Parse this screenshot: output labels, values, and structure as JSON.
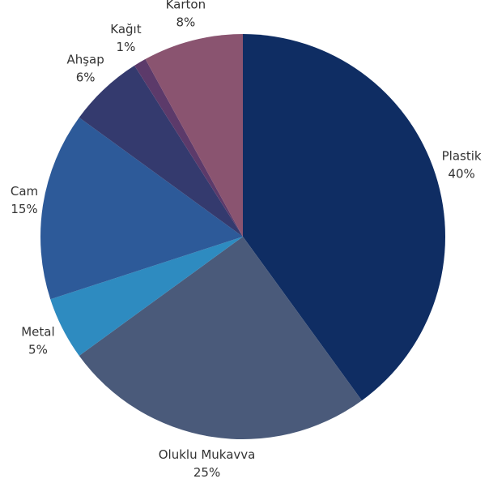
{
  "chart_data": {
    "type": "pie",
    "categories": [
      "Plastik",
      "Oluklu Mukavva",
      "Metal",
      "Cam",
      "Ahşap",
      "Kağıt",
      "Karton"
    ],
    "values": [
      40,
      25,
      5,
      15,
      6,
      1,
      8
    ],
    "value_labels": [
      "40%",
      "25%",
      "5%",
      "15%",
      "6%",
      "1%",
      "8%"
    ],
    "colors": [
      "#0f2d63",
      "#4a5a7a",
      "#2e8bc0",
      "#2d5a99",
      "#343a6e",
      "#5c3a6a",
      "#8a5470"
    ]
  }
}
